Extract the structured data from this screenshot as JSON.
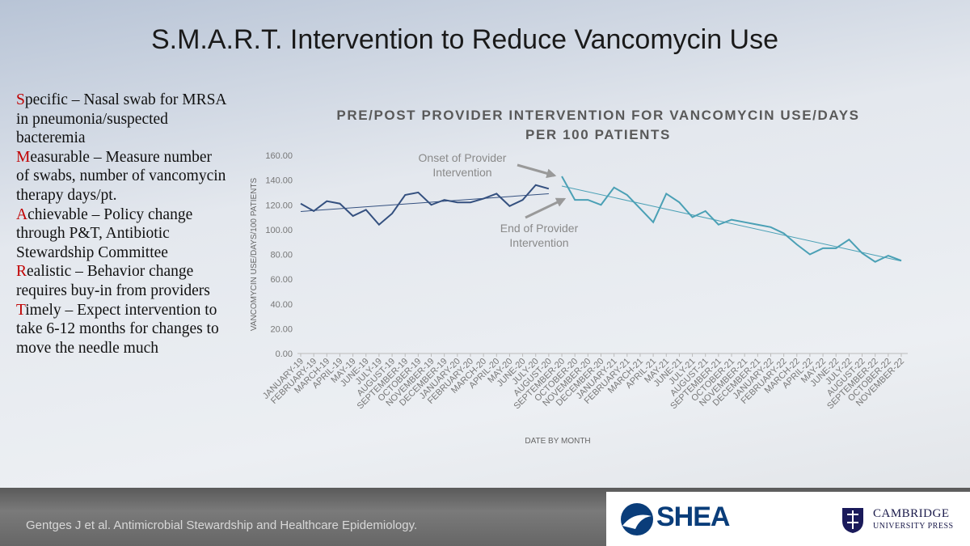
{
  "slide_title": "S.M.A.R.T. Intervention to Reduce Vancomycin Use",
  "smart_items": [
    {
      "letter": "S",
      "text": "pecific – Nasal swab for MRSA in pneumonia/suspected bacteremia"
    },
    {
      "letter": "M",
      "text": "easurable – Measure number of swabs, number of vancomycin therapy days/pt."
    },
    {
      "letter": "A",
      "text": "chievable – Policy change through P&T, Antibiotic Stewardship Committee"
    },
    {
      "letter": "R",
      "text": "ealistic – Behavior change requires buy-in from providers"
    },
    {
      "letter": "T",
      "text": "imely – Expect intervention to take 6-12 months for changes to move the needle much"
    }
  ],
  "chart_data": {
    "type": "line",
    "title": [
      "PRE/POST PROVIDER INTERVENTION FOR VANCOMYCIN USE/DAYS",
      "PER 100 PATIENTS"
    ],
    "y_label": "VANCOMYCIN USE/DAYS/100 PATIENTS",
    "x_label": "DATE BY MONTH",
    "categories": [
      "JANUARY-19",
      "FEBRUARY-19",
      "MARCH-19",
      "APRIL-19",
      "MAY-19",
      "JUNE-19",
      "JULY-19",
      "AUGUST-19",
      "SEPTEMBER-19",
      "OCTOBER-19",
      "NOVEMBER-19",
      "DECEMBER-19",
      "JANUARY-20",
      "FEBRUARY-20",
      "MARCH-20",
      "APRIL-20",
      "MAY-20",
      "JUNE-20",
      "JULY-20",
      "AUGUST-20",
      "SEPTEMBER-20",
      "OCTOBER-20",
      "NOVEMBER-20",
      "DECEMBER-20",
      "JANUARY-21",
      "FEBRUARY-21",
      "MARCH-21",
      "APRIL-21",
      "MAY-21",
      "JUNE-21",
      "JULY-21",
      "AUGUST-21",
      "SEPTEMBER-21",
      "OCTOBER-21",
      "NOVEMBER-21",
      "DECEMBER-21",
      "JANUARY-22",
      "FEBRUARY-22",
      "MARCH-22",
      "APRIL-22",
      "MAY-22",
      "JUNE-22",
      "JULY-22",
      "AUGUST-22",
      "SEPTEMBER-22",
      "OCTOBER-22",
      "NOVEMBER-22"
    ],
    "series": [
      {
        "color": "#34507f",
        "values": [
          121,
          115,
          123,
          121,
          111,
          116,
          104,
          113,
          128,
          130,
          120,
          124,
          122,
          122,
          125,
          129,
          119,
          124,
          136,
          133,
          null,
          null,
          null,
          null,
          null,
          null,
          null,
          null,
          null,
          null,
          null,
          null,
          null,
          null,
          null,
          null,
          null,
          null,
          null,
          null,
          null,
          null,
          null,
          null,
          null,
          null,
          null
        ]
      },
      {
        "color": "#4aa0b5",
        "values": [
          null,
          null,
          null,
          null,
          null,
          null,
          null,
          null,
          null,
          null,
          null,
          null,
          null,
          null,
          null,
          null,
          null,
          null,
          null,
          null,
          143,
          124,
          124,
          120,
          134,
          128,
          117,
          106,
          129,
          122,
          110,
          115,
          104,
          108,
          106,
          104,
          102,
          97,
          88,
          80,
          85,
          85,
          92,
          81,
          74,
          79,
          75
        ]
      }
    ],
    "trendline": true,
    "ylim": [
      0,
      160
    ],
    "yticks": [
      {
        "value": 0,
        "label": "0.00"
      },
      {
        "value": 20,
        "label": "20.00"
      },
      {
        "value": 40,
        "label": "40.00"
      },
      {
        "value": 60,
        "label": "60.00"
      },
      {
        "value": 80,
        "label": "80.00"
      },
      {
        "value": 100,
        "label": "100.00"
      },
      {
        "value": 120,
        "label": "120.00"
      },
      {
        "value": 140,
        "label": "140.00"
      },
      {
        "value": 160,
        "label": "160.00"
      }
    ],
    "grid": false,
    "annotations": [
      [
        "Onset of Provider",
        "Intervention"
      ],
      [
        "End of Provider",
        "Intervention"
      ]
    ]
  },
  "footer": {
    "citation": "Gentges J et al. Antimicrobial Stewardship and Healthcare Epidemiology.",
    "logo_left": "SHEA",
    "logo_right": [
      "CAMBRIDGE",
      "UNIVERSITY PRESS"
    ]
  }
}
